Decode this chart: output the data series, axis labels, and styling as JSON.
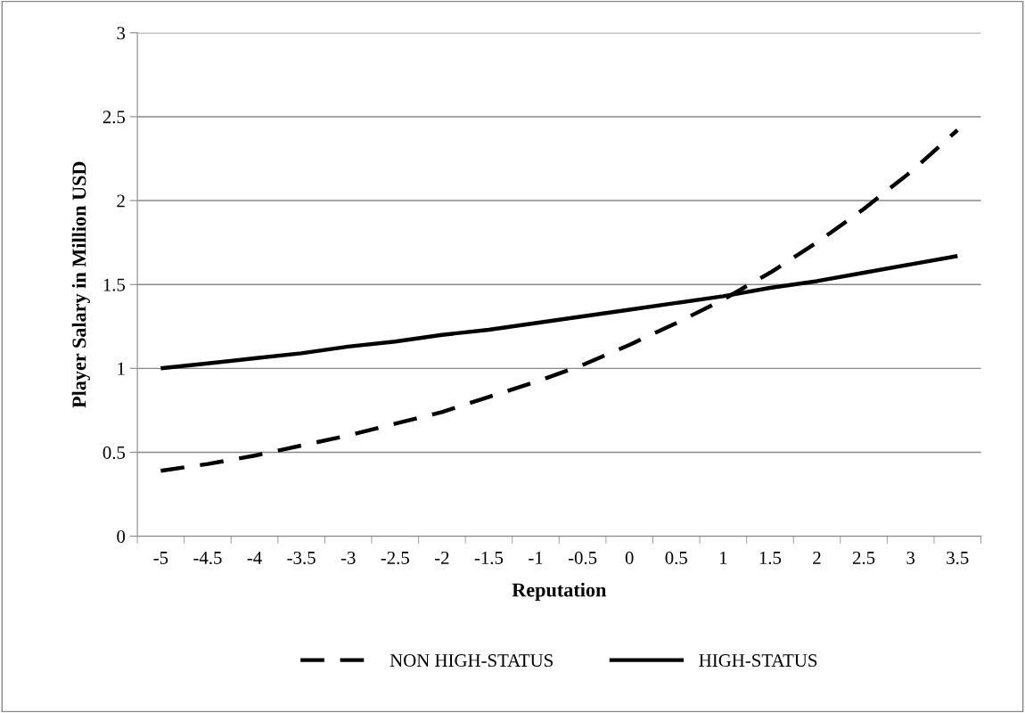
{
  "chart_data": {
    "type": "line",
    "xlabel": "Reputation",
    "ylabel": "Player Salary in Million USD",
    "categories": [
      "-5",
      "-4.5",
      "-4",
      "-3.5",
      "-3",
      "-2.5",
      "-2",
      "-1.5",
      "-1",
      "-0.5",
      "0",
      "0.5",
      "1",
      "1.5",
      "2",
      "2.5",
      "3",
      "3.5"
    ],
    "series": [
      {
        "name": "NON HIGH-STATUS",
        "color": "#000000",
        "line_style": "dashed",
        "values": [
          0.39,
          0.43,
          0.48,
          0.54,
          0.6,
          0.67,
          0.74,
          0.83,
          0.92,
          1.02,
          1.14,
          1.27,
          1.41,
          1.57,
          1.75,
          1.95,
          2.17,
          2.42
        ]
      },
      {
        "name": "HIGH-STATUS",
        "color": "#000000",
        "line_style": "solid",
        "values": [
          1.0,
          1.03,
          1.06,
          1.09,
          1.13,
          1.16,
          1.2,
          1.23,
          1.27,
          1.31,
          1.35,
          1.39,
          1.43,
          1.48,
          1.52,
          1.57,
          1.62,
          1.67
        ]
      }
    ],
    "ylim": [
      0,
      3
    ],
    "yticks": [
      0,
      0.5,
      1,
      1.5,
      2,
      2.5,
      3
    ],
    "grid": "y",
    "legend": "bottom",
    "marker": "none"
  }
}
